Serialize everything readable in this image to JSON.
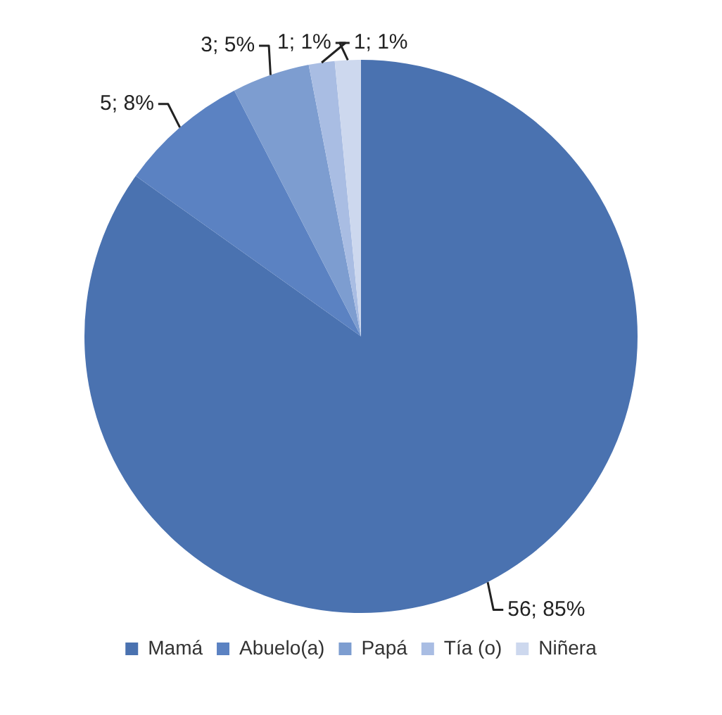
{
  "chart_data": {
    "type": "pie",
    "categories": [
      "Mamá",
      "Abuelo(a)",
      "Papá",
      "Tía (o)",
      "Niñera"
    ],
    "values": [
      56,
      5,
      3,
      1,
      1
    ],
    "colors": [
      "#4a72b0",
      "#5b82c2",
      "#7d9dd0",
      "#a9bde3",
      "#cdd8ee"
    ],
    "value_labels": [
      "56; 85%",
      "5; 8%",
      "3; 5%",
      "1; 1%",
      "1; 1%"
    ],
    "legend": "bottom"
  }
}
